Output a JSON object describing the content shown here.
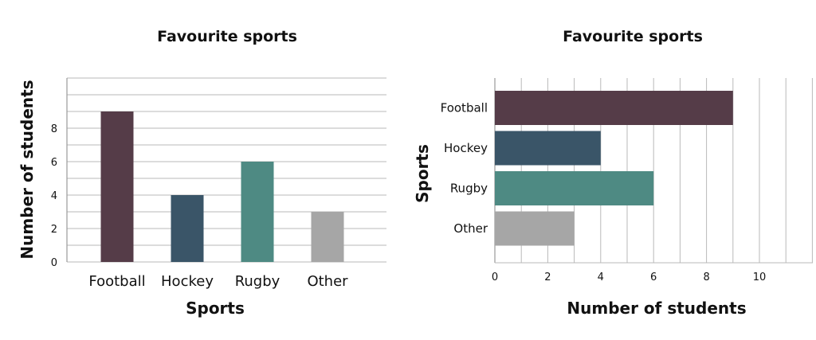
{
  "chart_data": [
    {
      "type": "bar",
      "orientation": "vertical",
      "title": "Favourite sports",
      "xlabel": "Sports",
      "ylabel": "Number of students",
      "categories": [
        "Football",
        "Hockey",
        "Rugby",
        "Other"
      ],
      "values": [
        9,
        4,
        6,
        3
      ],
      "ylim": [
        0,
        11
      ],
      "yticks": [
        "0",
        "2",
        "4",
        "6",
        "8"
      ],
      "colors": [
        "#553c48",
        "#3a5568",
        "#4e8a83",
        "#a6a6a6"
      ],
      "grid": true
    },
    {
      "type": "bar",
      "orientation": "horizontal",
      "title": "Favourite sports",
      "xlabel": "Number of students",
      "ylabel": "Sports",
      "categories": [
        "Football",
        "Hockey",
        "Rugby",
        "Other"
      ],
      "values": [
        9,
        4,
        6,
        3
      ],
      "xlim": [
        0,
        12
      ],
      "xticks": [
        "0",
        "2",
        "4",
        "6",
        "8",
        "10"
      ],
      "colors": [
        "#553c48",
        "#3a5568",
        "#4e8a83",
        "#a6a6a6"
      ],
      "grid": true
    }
  ]
}
